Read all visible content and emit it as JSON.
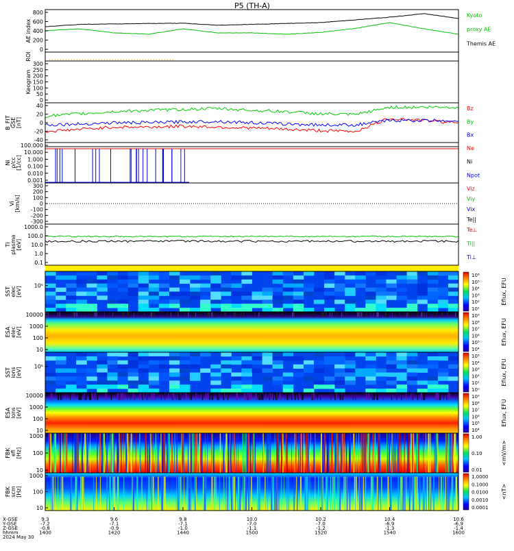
{
  "title": "P5 (TH-A)",
  "panels": {
    "ae": {
      "ylabel": "AE index",
      "ticks": [
        "800",
        "600",
        "400",
        "200",
        "0"
      ],
      "legend": [
        {
          "text": "Kyoto",
          "color": "#00c000"
        },
        {
          "text": "proxy AE",
          "color": "#00c000"
        },
        {
          "text": "Themis AE",
          "color": "#000000"
        }
      ]
    },
    "roi": {
      "ylabel": "ROI"
    },
    "keogram": {
      "ylabel": "Keogram",
      "ticks": [
        "300",
        "250",
        "200",
        "150",
        "100",
        "50",
        "0"
      ]
    },
    "bfield": {
      "ylabel_lines": [
        "B_FIT",
        "GSE",
        "[nT]"
      ],
      "ticks": [
        "40",
        "20",
        "0",
        "-20",
        "-40"
      ],
      "legend": [
        {
          "text": "Bz",
          "color": "#ff0000"
        },
        {
          "text": "By",
          "color": "#00cc00"
        },
        {
          "text": "Bx",
          "color": "#0000ff"
        }
      ]
    },
    "density": {
      "ylabel_lines": [
        "Ni",
        "ρ/cc",
        "[1/cc]"
      ],
      "ticks": [
        "100.000",
        "10.000",
        "1.000",
        "0.100",
        "0.010",
        "0.001"
      ],
      "legend": [
        {
          "text": "Ne",
          "color": "#ff0000"
        },
        {
          "text": "Ni",
          "color": "#000000"
        },
        {
          "text": "Npot",
          "color": "#0000ff"
        }
      ]
    },
    "velocity": {
      "ylabel_lines": [
        "Vi",
        "[km/s]"
      ],
      "ticks": [
        "300",
        "200",
        "100",
        "0",
        "-100",
        "-200",
        "-300"
      ],
      "legend": [
        {
          "text": "Viz",
          "color": "#ff0000"
        },
        {
          "text": "Viy",
          "color": "#00cc00"
        },
        {
          "text": "Vix",
          "color": "#0000ff"
        },
        {
          "text": "Te||",
          "color": "#000000"
        }
      ]
    },
    "temperature": {
      "ylabel_lines": [
        "Ti",
        "plasma",
        "[eV]"
      ],
      "ticks": [
        "1000.0",
        "100.0",
        "10.0",
        "1.0",
        "0.1"
      ],
      "legend": [
        {
          "text": "Te⊥",
          "color": "#ff0000"
        },
        {
          "text": "Ti||",
          "color": "#00cc00"
        },
        {
          "text": "Ti⊥",
          "color": "#0000ff"
        }
      ]
    },
    "sst_e": {
      "ylabel_lines": [
        "SST",
        "elec",
        "[eV]"
      ],
      "ticks": [
        "10⁵"
      ]
    },
    "esa_e": {
      "ylabel_lines": [
        "ESA",
        "elec",
        "[eV]"
      ],
      "ticks": [
        "10000",
        "1000",
        "100",
        "10"
      ]
    },
    "sst_i": {
      "ylabel_lines": [
        "SST",
        "ions",
        "[eV]"
      ],
      "ticks": [
        "10⁵"
      ]
    },
    "esa_i": {
      "ylabel_lines": [
        "ESA",
        "ions",
        "[eV]"
      ],
      "ticks": [
        "10000",
        "1000",
        "100",
        "10"
      ]
    },
    "fbk_e": {
      "ylabel_lines": [
        "FBK",
        "efi",
        "[Hz]"
      ],
      "ticks": [
        "1000",
        "100",
        "10"
      ]
    },
    "fbk_b": {
      "ylabel_lines": [
        "FBK",
        "scm",
        "[Hz]"
      ],
      "ticks": [
        "1000",
        "100",
        "10"
      ]
    }
  },
  "colorbars": [
    {
      "label": "Eflux, EFU",
      "ticks": [
        "10⁶",
        "10⁵",
        "10⁴",
        "10³",
        "10²",
        "10¹"
      ]
    },
    {
      "label": "Eflux, EFU",
      "ticks": [
        "10⁹",
        "10⁸",
        "10⁷",
        "10⁶",
        "10⁵",
        "10⁴"
      ]
    },
    {
      "label": "Eflux, EFU",
      "ticks": [
        "10⁵",
        "10⁴",
        "10³",
        "10²",
        "10¹",
        "10⁰"
      ]
    },
    {
      "label": "Eflux, EFU",
      "ticks": [
        "10⁹",
        "10⁸",
        "10⁷",
        "10⁶",
        "10⁵",
        "10⁴"
      ]
    },
    {
      "label": "<mV/m>",
      "ticks": [
        "1.00",
        "0.10",
        "0.01"
      ]
    },
    {
      "label": "<nT>",
      "ticks": [
        "1.0000",
        "0.1000",
        "0.0100",
        "0.0010",
        "0.0001"
      ]
    }
  ],
  "x_axis": {
    "row_labels": [
      "X-GSE",
      "Y-GSE",
      "Z-GSE",
      "hhmm",
      "2024 May 30"
    ],
    "columns": [
      {
        "x": "9.3",
        "y": "-7.2",
        "z": "-0.8",
        "t": "1400"
      },
      {
        "x": "9.6",
        "y": "-7.1",
        "z": "-0.9",
        "t": "1420"
      },
      {
        "x": "9.8",
        "y": "-7.1",
        "z": "-1.0",
        "t": "1440"
      },
      {
        "x": "10.0",
        "y": "-7.0",
        "z": "-1.1",
        "t": "1500"
      },
      {
        "x": "10.2",
        "y": "-7.0",
        "z": "-1.2",
        "t": "1520"
      },
      {
        "x": "10.4",
        "y": "-6.9",
        "z": "-1.3",
        "t": "1540"
      },
      {
        "x": "10.6",
        "y": "-6.9",
        "z": "-1.4",
        "t": "1600"
      }
    ]
  },
  "chart_data": {
    "type": "line",
    "x_minutes": [
      0,
      10,
      20,
      30,
      40,
      50,
      60,
      70,
      80,
      90,
      100,
      110,
      120
    ],
    "series_ae": [
      {
        "name": "Themis AE",
        "values": [
          470,
          520,
          530,
          540,
          545,
          500,
          520,
          540,
          560,
          620,
          680,
          760,
          650
        ]
      },
      {
        "name": "Kyoto proxy AE",
        "values": [
          380,
          420,
          330,
          300,
          420,
          330,
          330,
          300,
          340,
          430,
          560,
          420,
          300
        ]
      }
    ],
    "series_b": [
      {
        "name": "Bz",
        "values": [
          -20,
          -15,
          -10,
          -10,
          -8,
          -10,
          -12,
          -15,
          -18,
          -20,
          10,
          5,
          0
        ]
      },
      {
        "name": "By",
        "values": [
          15,
          20,
          25,
          28,
          30,
          32,
          28,
          25,
          20,
          18,
          35,
          35,
          35
        ]
      },
      {
        "name": "Bx",
        "values": [
          -5,
          -3,
          0,
          0,
          2,
          3,
          0,
          -3,
          -5,
          -5,
          5,
          5,
          5
        ]
      }
    ],
    "ylim_ae": [
      -100,
      850
    ],
    "ylim_b": [
      -45,
      45
    ]
  }
}
